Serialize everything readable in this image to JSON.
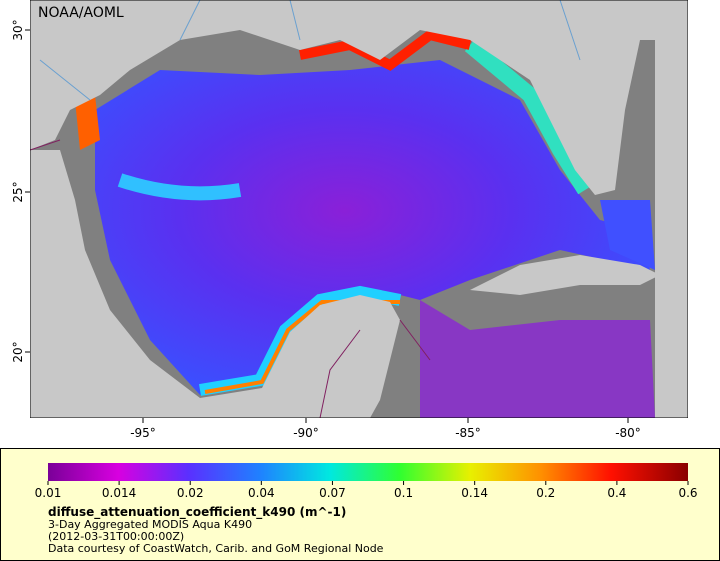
{
  "map": {
    "credit": "NOAA/AOML",
    "lon_labels": [
      "-95°",
      "-90°",
      "-85°",
      "-80°"
    ],
    "lat_labels": [
      "30°",
      "25°",
      "20°"
    ]
  },
  "legend": {
    "ticks": [
      "0.01",
      "0.014",
      "0.02",
      "0.04",
      "0.07",
      "0.1",
      "0.14",
      "0.2",
      "0.4",
      "0.6"
    ],
    "variable": "diffuse_attenuation_coefficient_k490 (m^-1)",
    "description": "3-Day Aggregated MODIS Aqua K490",
    "date": "(2012-03-31T00:00:00Z)",
    "source": "Data courtesy of CoastWatch, Carib. and GoM Regional Node"
  }
}
